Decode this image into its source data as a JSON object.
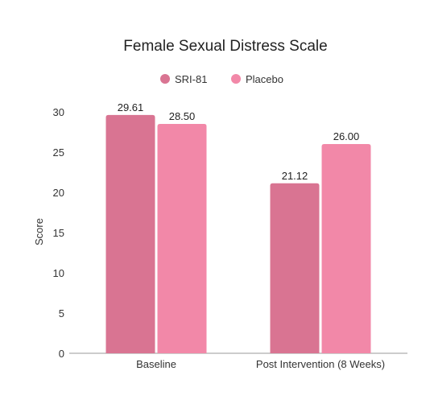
{
  "chart_data": {
    "type": "bar",
    "title": "Female Sexual Distress Scale",
    "xlabel": "",
    "ylabel": "Score",
    "categories": [
      "Baseline",
      "Post Intervention (8 Weeks)"
    ],
    "series": [
      {
        "name": "SRI-81",
        "values": [
          29.61,
          21.12
        ],
        "value_labels": [
          "29.61",
          "21.12"
        ],
        "color": "#d97492"
      },
      {
        "name": "Placebo",
        "values": [
          28.5,
          26.0
        ],
        "value_labels": [
          "28.50",
          "26.00"
        ],
        "color": "#f288a8"
      }
    ],
    "ylim": [
      0,
      30
    ],
    "yticks": [
      "0",
      "5",
      "10",
      "15",
      "20",
      "25",
      "30"
    ],
    "grid": false,
    "legend_position": "top-center"
  }
}
